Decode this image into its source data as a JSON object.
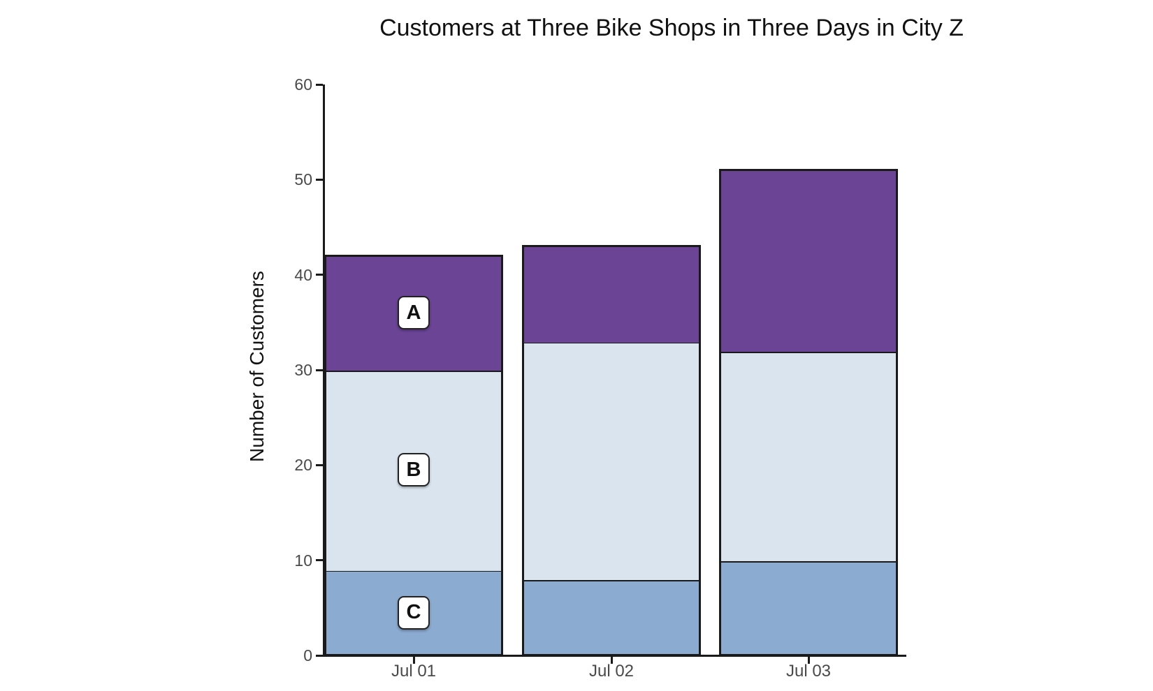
{
  "chart_data": {
    "type": "bar",
    "stacked": true,
    "title": "Customers at Three Bike Shops in Three Days in City Z",
    "ylabel": "Number of Customers",
    "xlabel": "",
    "categories": [
      "Jul 01",
      "Jul 02",
      "Jul 03"
    ],
    "series": [
      {
        "name": "C",
        "label": "C",
        "color": "#8CABD1",
        "values": [
          9,
          8,
          10
        ]
      },
      {
        "name": "B",
        "label": "B",
        "color": "#D9E4EF",
        "values": [
          21,
          25,
          22
        ]
      },
      {
        "name": "A",
        "label": "A",
        "color": "#6B4496",
        "values": [
          12,
          10,
          19
        ]
      }
    ],
    "stack_totals": [
      42,
      43,
      51
    ],
    "segment_boundaries": {
      "Jul 01": [
        9,
        30,
        42
      ],
      "Jul 02": [
        8,
        33,
        43
      ],
      "Jul 03": [
        10,
        32,
        51
      ]
    },
    "ylim": [
      0,
      60
    ],
    "yticks": [
      0,
      10,
      20,
      30,
      40,
      50,
      60
    ],
    "grid": false,
    "legend_position": "labels-inside-first-bar",
    "colors": {
      "bar_border": "#1a1a1a",
      "axis": "#1a1a1a",
      "tick_label": "#4a4a4a",
      "title_text": "#111111",
      "label_box_bg": "#ffffff",
      "label_box_border": "#222222",
      "background": "#ffffff"
    }
  }
}
